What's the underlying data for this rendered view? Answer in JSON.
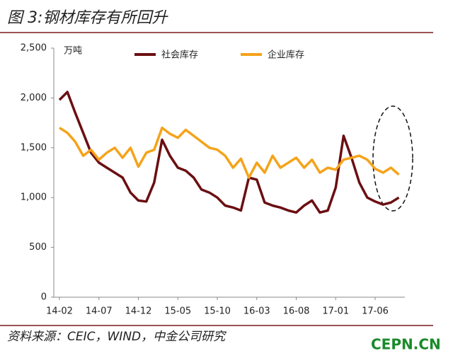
{
  "chart_data": {
    "type": "line",
    "title": "图 3:钢材库存有所回升",
    "unit_label": "万吨",
    "source": "资料来源：CEIC，WIND，中金公司研究",
    "watermark": "CEPN.CN",
    "categories": [
      "14-02",
      null,
      null,
      null,
      null,
      "14-07",
      null,
      null,
      null,
      null,
      "14-12",
      null,
      null,
      null,
      null,
      "15-05",
      null,
      null,
      null,
      null,
      "15-10",
      null,
      null,
      null,
      null,
      "16-03",
      null,
      null,
      null,
      null,
      "16-08",
      null,
      null,
      null,
      null,
      "17-01",
      null,
      null,
      null,
      null,
      "17-06",
      null,
      null,
      null
    ],
    "series": [
      {
        "name": "社会库存",
        "color": "#6b0f12",
        "values": [
          1980,
          2060,
          1850,
          1650,
          1450,
          1350,
          1300,
          1250,
          1200,
          1050,
          970,
          960,
          1150,
          1580,
          1420,
          1300,
          1270,
          1200,
          1080,
          1050,
          1000,
          920,
          900,
          870,
          1200,
          1180,
          950,
          920,
          900,
          870,
          850,
          920,
          970,
          850,
          870,
          1100,
          1620,
          1400,
          1150,
          1000,
          960,
          930,
          950,
          1000
        ]
      },
      {
        "name": "企业库存",
        "color": "#f5a31a",
        "values": [
          1700,
          1650,
          1560,
          1420,
          1480,
          1380,
          1450,
          1500,
          1400,
          1500,
          1310,
          1450,
          1480,
          1700,
          1640,
          1600,
          1680,
          1620,
          1560,
          1500,
          1480,
          1420,
          1300,
          1390,
          1200,
          1350,
          1250,
          1420,
          1300,
          1350,
          1400,
          1300,
          1380,
          1250,
          1300,
          1280,
          1380,
          1400,
          1420,
          1380,
          1290,
          1250,
          1300,
          1230
        ]
      }
    ],
    "ylim": [
      0,
      2500
    ],
    "yticks": [
      0,
      500,
      {
        "value": 1000,
        "label": "1,000"
      },
      {
        "value": 1500,
        "label": "1,500"
      },
      {
        "value": 2000,
        "label": "2,000"
      },
      {
        "value": 2500,
        "label": "2,500"
      }
    ]
  }
}
